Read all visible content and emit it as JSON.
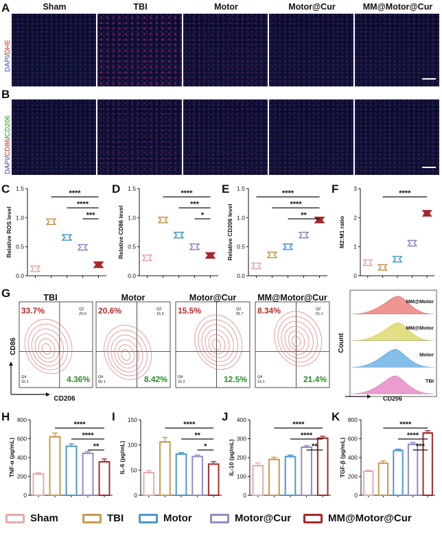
{
  "panel_letters": {
    "A": "A",
    "B": "B",
    "C": "C",
    "D": "D",
    "E": "E",
    "F": "F",
    "G": "G",
    "H": "H",
    "I": "I",
    "J": "J",
    "K": "K"
  },
  "groups": [
    "Sham",
    "TBI",
    "Motor",
    "Motor@Cur",
    "MM@Motor@Cur"
  ],
  "colors": {
    "Sham": "#e8a9ab",
    "TBI": "#c79a4c",
    "Motor": "#4a97d4",
    "Motor@Cur": "#8f8ac8",
    "MM@Motor@Cur": "#a8282a"
  },
  "microscopy": {
    "row_a_label": {
      "dapi": "DAPI",
      "sep": "/",
      "dhe": "DHE"
    },
    "row_b_label": {
      "dapi": "DAPI",
      "sep1": "/",
      "cd86": "CD86",
      "sep2": "/",
      "cd206": "CD206"
    }
  },
  "chart_data": [
    {
      "id": "C",
      "type": "bar",
      "title": "",
      "ylabel": "Relative ROS  level",
      "ylim": [
        0,
        1.5
      ],
      "yticks": [
        "0.0",
        "0.5",
        "1.0",
        "1.5"
      ],
      "categories": [
        "Sham",
        "TBI",
        "Motor",
        "Motor@Cur",
        "MM@Motor@Cur"
      ],
      "values": [
        0.12,
        0.93,
        0.66,
        0.49,
        0.19
      ],
      "sig": [
        {
          "from": 1,
          "to": 4,
          "label": "****"
        },
        {
          "from": 2,
          "to": 4,
          "label": "****"
        },
        {
          "from": 3,
          "to": 4,
          "label": "***"
        }
      ]
    },
    {
      "id": "D",
      "type": "bar",
      "title": "",
      "ylabel": "Relative CD86  level",
      "ylim": [
        0,
        1.5
      ],
      "yticks": [
        "0.0",
        "0.5",
        "1.0",
        "1.5"
      ],
      "categories": [
        "Sham",
        "TBI",
        "Motor",
        "Motor@Cur",
        "MM@Motor@Cur"
      ],
      "values": [
        0.31,
        0.96,
        0.7,
        0.5,
        0.35
      ],
      "sig": [
        {
          "from": 1,
          "to": 4,
          "label": "****"
        },
        {
          "from": 2,
          "to": 4,
          "label": "***"
        },
        {
          "from": 3,
          "to": 4,
          "label": "*"
        }
      ]
    },
    {
      "id": "E",
      "type": "bar",
      "title": "",
      "ylabel": "Relative CD206 level",
      "ylim": [
        0,
        1.5
      ],
      "yticks": [
        "0.0",
        "0.5",
        "1.0",
        "1.5"
      ],
      "categories": [
        "Sham",
        "TBI",
        "Motor",
        "Motor@Cur",
        "MM@Motor@Cur"
      ],
      "values": [
        0.17,
        0.36,
        0.5,
        0.7,
        0.96
      ],
      "sig": [
        {
          "from": 0,
          "to": 4,
          "label": "****"
        },
        {
          "from": 1,
          "to": 4,
          "label": "****"
        },
        {
          "from": 2,
          "to": 4,
          "label": "**"
        }
      ]
    },
    {
      "id": "F",
      "type": "bar",
      "title": "",
      "ylabel": "M2:M1 ratio",
      "ylim": [
        0,
        3
      ],
      "yticks": [
        "0",
        "1",
        "2",
        "3"
      ],
      "categories": [
        "Sham",
        "TBI",
        "Motor",
        "Motor@Cur",
        "MM@Motor@Cur"
      ],
      "values": [
        0.45,
        0.29,
        0.57,
        1.12,
        2.15
      ],
      "sig": [
        {
          "from": 1,
          "to": 4,
          "label": "****"
        }
      ]
    },
    {
      "id": "H",
      "type": "bar",
      "title": "",
      "ylabel": "TNF-α (pg/mL)",
      "ylim": [
        0,
        800
      ],
      "yticks": [
        "0",
        "200",
        "400",
        "600",
        "800"
      ],
      "categories": [
        "Sham",
        "TBI",
        "Motor",
        "Motor@Cur",
        "MM@Motor@Cur"
      ],
      "values": [
        225,
        620,
        520,
        445,
        355
      ],
      "errors": [
        15,
        40,
        25,
        20,
        30
      ],
      "sig": [
        {
          "from": 1,
          "to": 4,
          "label": "****"
        },
        {
          "from": 2,
          "to": 4,
          "label": "****"
        },
        {
          "from": 3,
          "to": 4,
          "label": "**"
        }
      ]
    },
    {
      "id": "I",
      "type": "bar",
      "title": "",
      "ylabel": "IL-6 (pg/mL)",
      "ylim": [
        0,
        150
      ],
      "yticks": [
        "0",
        "50",
        "100",
        "150"
      ],
      "categories": [
        "Sham",
        "TBI",
        "Motor",
        "Motor@Cur",
        "MM@Motor@Cur"
      ],
      "values": [
        45,
        106,
        82,
        77,
        62
      ],
      "errors": [
        4,
        9,
        3,
        3,
        5
      ],
      "sig": [
        {
          "from": 1,
          "to": 4,
          "label": "****"
        },
        {
          "from": 2,
          "to": 4,
          "label": "**"
        },
        {
          "from": 3,
          "to": 4,
          "label": "*"
        }
      ]
    },
    {
      "id": "J",
      "type": "bar",
      "title": "",
      "ylabel": "IL-10 (pg/mL)",
      "ylim": [
        0,
        400
      ],
      "yticks": [
        "0",
        "100",
        "200",
        "300",
        "400"
      ],
      "categories": [
        "Sham",
        "TBI",
        "Motor",
        "Motor@Cur",
        "MM@Motor@Cur"
      ],
      "values": [
        157,
        190,
        205,
        255,
        303
      ],
      "errors": [
        14,
        12,
        8,
        8,
        10
      ],
      "sig": [
        {
          "from": 1,
          "to": 4,
          "label": "****"
        },
        {
          "from": 2,
          "to": 4,
          "label": "****"
        },
        {
          "from": 3,
          "to": 4,
          "label": "**"
        }
      ]
    },
    {
      "id": "K",
      "type": "bar",
      "title": "",
      "ylabel": "TGF-β (pg/mL)",
      "ylim": [
        0,
        800
      ],
      "yticks": [
        "0",
        "200",
        "400",
        "600",
        "800"
      ],
      "categories": [
        "Sham",
        "TBI",
        "Motor",
        "Motor@Cur",
        "MM@Motor@Cur"
      ],
      "values": [
        255,
        340,
        475,
        540,
        660
      ],
      "errors": [
        10,
        25,
        15,
        20,
        25
      ],
      "sig": [
        {
          "from": 1,
          "to": 4,
          "label": "****"
        },
        {
          "from": 2,
          "to": 4,
          "label": "****"
        },
        {
          "from": 3,
          "to": 4,
          "label": "***"
        }
      ]
    }
  ],
  "flow": {
    "x_label": "CD206",
    "y_label": "CD86",
    "plots": [
      {
        "name": "TBI",
        "q1": "33.7%",
        "q2_label": "Q2",
        "q2": "29.0",
        "q4_label": "Q4",
        "q4": "32.1",
        "q3": "4.36%"
      },
      {
        "name": "Motor",
        "q1": "20.6%",
        "q2_label": "Q2",
        "q2": "15.9",
        "q4_label": "Q4",
        "q4": "55.1",
        "q3": "8.42%"
      },
      {
        "name": "Motor@Cur",
        "q1": "15.5%",
        "q2_label": "Q2",
        "q2": "55.7",
        "q4_label": "Q4",
        "q4": "16.2",
        "q3": "12.5%"
      },
      {
        "name": "MM@Motor@Cur",
        "q1": "8.34%",
        "q2_label": "Q2",
        "q2": "51.1",
        "q4_label": "Q4",
        "q4": "19.1",
        "q3": "21.4%"
      }
    ],
    "histogram": {
      "y_label": "Count",
      "x_label": "CD206",
      "labels": [
        "MM@Motor",
        "MM@Motor",
        "Motor",
        "TBI"
      ],
      "colors": [
        "#e8736e",
        "#d8d35a",
        "#5aa9de",
        "#e67bbf"
      ]
    }
  },
  "legend": [
    "Sham",
    "TBI",
    "Motor",
    "Motor@Cur",
    "MM@Motor@Cur"
  ]
}
